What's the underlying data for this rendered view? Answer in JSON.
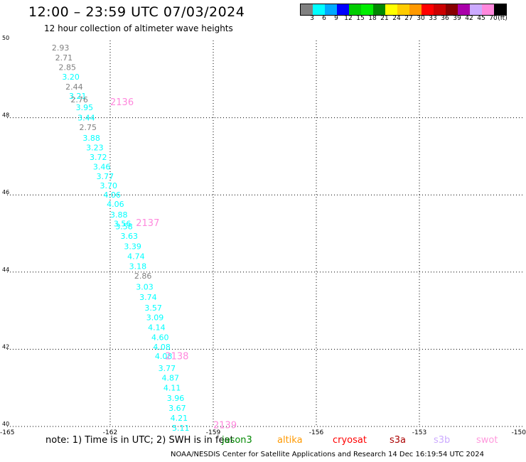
{
  "title": "12:00 – 23:59 UTC 07/03/2024",
  "subtitle": "12 hour collection of altimeter wave heights",
  "colorbar": {
    "colors": [
      "#808080",
      "#00ffff",
      "#00aaff",
      "#0000ff",
      "#00cc00",
      "#00ee00",
      "#008800",
      "#ffff00",
      "#ffcc00",
      "#ff9900",
      "#ff0000",
      "#cc0000",
      "#880000",
      "#aa00aa",
      "#ccaaff",
      "#ff88dd",
      "#000000"
    ],
    "labels": [
      "3",
      "6",
      "9",
      "12",
      "15",
      "18",
      "21",
      "24",
      "27",
      "30",
      "33",
      "36",
      "39",
      "42",
      "45",
      "70",
      "(ft)"
    ]
  },
  "note": "note:  1) Time is in UTC;  2) SWH is in feet",
  "satellites": [
    {
      "name": "jason3",
      "color": "#008800"
    },
    {
      "name": "altika",
      "color": "#ff9900"
    },
    {
      "name": "cryosat",
      "color": "#ff0000"
    },
    {
      "name": "s3a",
      "color": "#aa0000"
    },
    {
      "name": "s3b",
      "color": "#ccaaff"
    },
    {
      "name": "swot",
      "color": "#ff99dd"
    }
  ],
  "footer": "NOAA/NESDIS Center for Satellite Applications and Research    14 Dec 16:19:54 UTC 2024",
  "chart_data": {
    "type": "scatter",
    "xlim": [
      -165,
      -150
    ],
    "ylim": [
      40,
      50
    ],
    "x_ticks": [
      -165,
      -162,
      -159,
      -156,
      -153,
      -150
    ],
    "x_tick_labels": [
      "-165",
      "-162",
      "-159",
      "-156",
      "-153",
      "-150"
    ],
    "y_ticks": [
      40,
      42,
      44,
      46,
      48,
      50
    ],
    "y_tick_labels": [
      "40",
      "42",
      "44",
      "46",
      "48",
      "50"
    ],
    "grid": true,
    "points": [
      {
        "lon": -163.7,
        "lat": 49.82,
        "label": "2.93",
        "color": "#808080"
      },
      {
        "lon": -163.6,
        "lat": 49.56,
        "label": "2.71",
        "color": "#808080"
      },
      {
        "lon": -163.5,
        "lat": 49.31,
        "label": "2.85",
        "color": "#808080"
      },
      {
        "lon": -163.4,
        "lat": 49.06,
        "label": "3.20",
        "color": "#00ffff"
      },
      {
        "lon": -163.3,
        "lat": 48.8,
        "label": "2.44",
        "color": "#808080"
      },
      {
        "lon": -163.2,
        "lat": 48.56,
        "label": "3.21",
        "color": "#00ffff"
      },
      {
        "lon": -163.15,
        "lat": 48.47,
        "label": "2.76",
        "color": "#808080"
      },
      {
        "lon": -163.0,
        "lat": 48.27,
        "label": "3.95",
        "color": "#00ffff"
      },
      {
        "lon": -162.95,
        "lat": 48.0,
        "label": "3.44",
        "color": "#00ffff"
      },
      {
        "lon": -162.9,
        "lat": 47.75,
        "label": "2.75",
        "color": "#808080"
      },
      {
        "lon": -162.8,
        "lat": 47.48,
        "label": "3.88",
        "color": "#00ffff"
      },
      {
        "lon": -162.7,
        "lat": 47.23,
        "label": "3.23",
        "color": "#00ffff"
      },
      {
        "lon": -162.6,
        "lat": 46.98,
        "label": "3.72",
        "color": "#00ffff"
      },
      {
        "lon": -162.5,
        "lat": 46.73,
        "label": "3.46",
        "color": "#00ffff"
      },
      {
        "lon": -162.4,
        "lat": 46.48,
        "label": "3.77",
        "color": "#00ffff"
      },
      {
        "lon": -162.3,
        "lat": 46.24,
        "label": "3.70",
        "color": "#00ffff"
      },
      {
        "lon": -162.2,
        "lat": 46.0,
        "label": "4.06",
        "color": "#00ffff"
      },
      {
        "lon": -162.1,
        "lat": 45.76,
        "label": "4.06",
        "color": "#00ffff"
      },
      {
        "lon": -162.0,
        "lat": 45.49,
        "label": "3.88",
        "color": "#00ffff"
      },
      {
        "lon": -161.9,
        "lat": 45.26,
        "label": "3.56",
        "color": "#00ffff"
      },
      {
        "lon": -161.85,
        "lat": 45.18,
        "label": "3.58",
        "color": "#00ffff"
      },
      {
        "lon": -161.7,
        "lat": 44.94,
        "label": "3.63",
        "color": "#00ffff"
      },
      {
        "lon": -161.6,
        "lat": 44.67,
        "label": "3.39",
        "color": "#00ffff"
      },
      {
        "lon": -161.5,
        "lat": 44.41,
        "label": "4.74",
        "color": "#00ffff"
      },
      {
        "lon": -161.45,
        "lat": 44.15,
        "label": "3.18",
        "color": "#00ffff"
      },
      {
        "lon": -161.3,
        "lat": 43.9,
        "label": "2.86",
        "color": "#808080"
      },
      {
        "lon": -161.25,
        "lat": 43.62,
        "label": "3.03",
        "color": "#00ffff"
      },
      {
        "lon": -161.15,
        "lat": 43.35,
        "label": "3.74",
        "color": "#00ffff"
      },
      {
        "lon": -161.0,
        "lat": 43.08,
        "label": "3.57",
        "color": "#00ffff"
      },
      {
        "lon": -160.95,
        "lat": 42.83,
        "label": "3.09",
        "color": "#00ffff"
      },
      {
        "lon": -160.9,
        "lat": 42.57,
        "label": "4.14",
        "color": "#00ffff"
      },
      {
        "lon": -160.8,
        "lat": 42.31,
        "label": "4.60",
        "color": "#00ffff"
      },
      {
        "lon": -160.75,
        "lat": 42.06,
        "label": "4.08",
        "color": "#00ffff"
      },
      {
        "lon": -160.7,
        "lat": 41.82,
        "label": "4.08",
        "color": "#00ffff"
      },
      {
        "lon": -160.6,
        "lat": 41.51,
        "label": "3.77",
        "color": "#00ffff"
      },
      {
        "lon": -160.5,
        "lat": 41.26,
        "label": "4.87",
        "color": "#00ffff"
      },
      {
        "lon": -160.45,
        "lat": 41.0,
        "label": "4.11",
        "color": "#00ffff"
      },
      {
        "lon": -160.35,
        "lat": 40.74,
        "label": "3.96",
        "color": "#00ffff"
      },
      {
        "lon": -160.3,
        "lat": 40.48,
        "label": "3.67",
        "color": "#00ffff"
      },
      {
        "lon": -160.25,
        "lat": 40.22,
        "label": "4.21",
        "color": "#00ffff"
      },
      {
        "lon": -160.2,
        "lat": 39.96,
        "label": "5.11",
        "color": "#00ffff"
      }
    ],
    "annotations": [
      {
        "lon": -162.0,
        "lat": 48.42,
        "text": "2136",
        "color": "#ff88dd"
      },
      {
        "lon": -161.25,
        "lat": 45.29,
        "text": "2137",
        "color": "#ff88dd"
      },
      {
        "lon": -160.4,
        "lat": 41.83,
        "text": "2138",
        "color": "#ff88dd"
      },
      {
        "lon": -159.0,
        "lat": 40.05,
        "text": "2139",
        "color": "#ff88dd"
      }
    ]
  }
}
